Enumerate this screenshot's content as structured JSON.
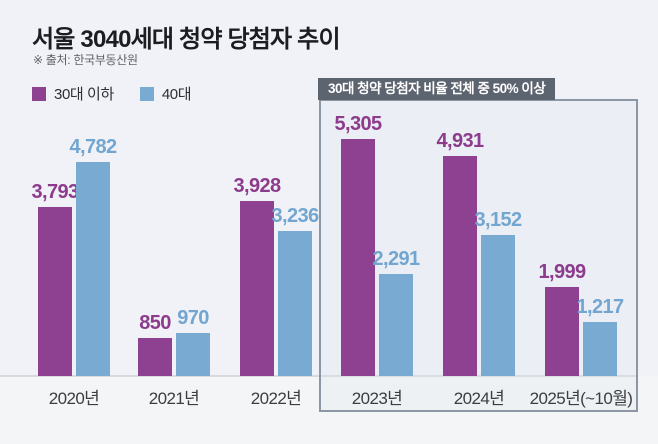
{
  "title": "서울 3040세대 청약 당첨자 추이",
  "source": "※ 출처: 한국부동산원",
  "annotation": {
    "label": "30대 청약 당첨자 비율 전체 중 50% 이상"
  },
  "colors": {
    "series_30s": "#8e4191",
    "series_40s": "#78aad2",
    "label_30s": "#8c3b8d",
    "label_40s": "#72a6d0",
    "annotation_header_bg": "#5c6470",
    "annotation_border": "#8d97a4",
    "background": "#f0f2f7"
  },
  "chart_data": {
    "type": "bar",
    "title": "서울 3040세대 청약 당첨자 추이",
    "source": "※ 출처: 한국부동산원",
    "categories": [
      "2020년",
      "2021년",
      "2022년",
      "2023년",
      "2024년",
      "2025년(~10월)"
    ],
    "series": [
      {
        "name": "30대 이하",
        "color": "#8e4191",
        "label_color": "#8c3b8d",
        "values": [
          3793,
          850,
          3928,
          5305,
          4931,
          1999
        ]
      },
      {
        "name": "40대",
        "color": "#78aad2",
        "label_color": "#72a6d0",
        "values": [
          4782,
          970,
          3236,
          2291,
          3152,
          1217
        ]
      }
    ],
    "value_labels": true,
    "ylim": [
      0,
      5305
    ],
    "grid": false,
    "legend_position": "top-left",
    "annotation": "30대 청약 당첨자 비율 전체 중 50% 이상",
    "annotation_scope": [
      "2023년",
      "2024년",
      "2025년(~10월)"
    ]
  }
}
